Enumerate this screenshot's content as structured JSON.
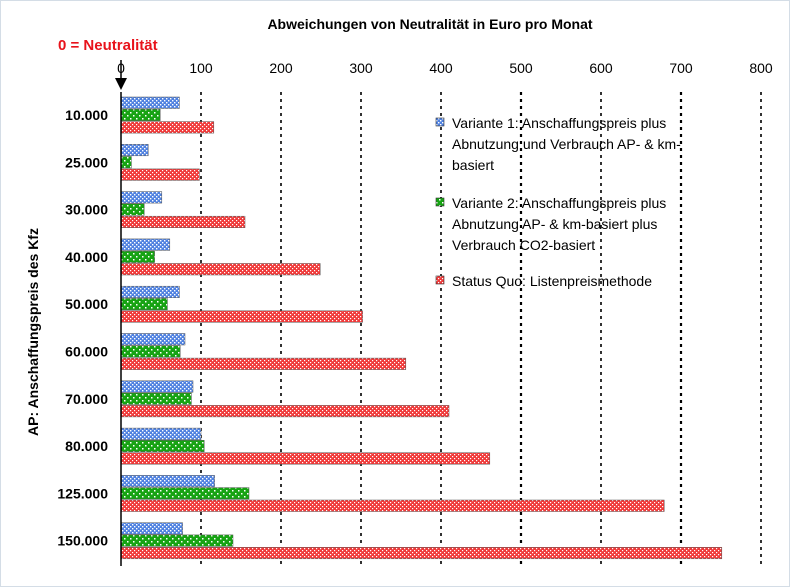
{
  "chart_data": {
    "type": "bar",
    "orientation": "horizontal",
    "title": "Abweichungen von Neutralität in Euro pro Monat",
    "annotation": "0  =  Neutralität",
    "ylabel": "AP: Anschaffungspreis des Kfz",
    "xlim": [
      0,
      800
    ],
    "xticks": [
      0,
      100,
      200,
      300,
      400,
      500,
      600,
      700,
      800
    ],
    "categories": [
      "10.000",
      "25.000",
      "30.000",
      "40.000",
      "50.000",
      "60.000",
      "70.000",
      "80.000",
      "125.000",
      "150.000"
    ],
    "series": [
      {
        "name": "Variante 1: Anschaffungspreis plus Abnutzung und Verbrauch AP- & km-basiert",
        "legend_lines": [
          "Variante 1: Anschaffungspreis plus",
          "Abnutzung und Verbrauch AP- & km-",
          "basiert"
        ],
        "color": "#4f81e0",
        "values": [
          73,
          34,
          51,
          61,
          73,
          80,
          90,
          100,
          117,
          77
        ]
      },
      {
        "name": "Variante 2: Anschaffungspreis plus Abnutzung AP- & km-basiert plus Verbrauch CO2-basiert",
        "legend_lines": [
          "Variante 2: Anschaffungspreis plus",
          "Abnutzung AP- & km-basiert plus",
          "Verbrauch CO2-basiert"
        ],
        "color": "#17a313",
        "values": [
          49,
          13,
          29,
          42,
          58,
          74,
          88,
          104,
          160,
          140
        ]
      },
      {
        "name": "Status Quo: Listenpreismethode",
        "legend_lines": [
          "Status Quo: Listenpreismethode"
        ],
        "color": "#f03a3a",
        "values": [
          116,
          98,
          155,
          249,
          302,
          356,
          410,
          461,
          679,
          751
        ]
      }
    ],
    "grid": "vertical dotted",
    "legend_position": "right"
  }
}
